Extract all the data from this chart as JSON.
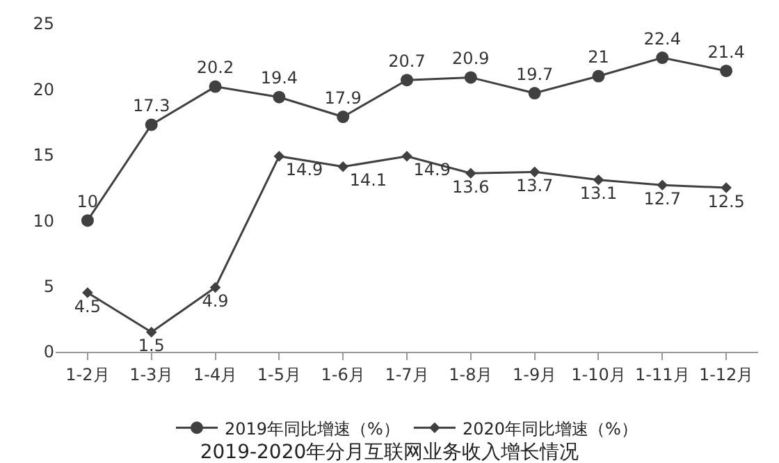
{
  "chart_data": {
    "type": "line",
    "title": "2019-2020年分月互联网业务收入增长情况",
    "categories": [
      "1-2月",
      "1-3月",
      "1-4月",
      "1-5月",
      "1-6月",
      "1-7月",
      "1-8月",
      "1-9月",
      "1-10月",
      "1-11月",
      "1-12月"
    ],
    "series": [
      {
        "name": "2019年同比增速（%）",
        "color": "#404040",
        "marker": "circle",
        "values": [
          10,
          17.3,
          20.2,
          19.4,
          17.9,
          20.7,
          20.9,
          19.7,
          21,
          22.4,
          21.4
        ]
      },
      {
        "name": "2020年同比增速（%）",
        "color": "#404040",
        "marker": "diamond",
        "values": [
          4.5,
          1.5,
          4.9,
          14.9,
          14.1,
          14.9,
          13.6,
          13.7,
          13.1,
          12.7,
          12.5
        ]
      }
    ],
    "ylim": [
      0,
      25
    ],
    "yticks": [
      0,
      5,
      10,
      15,
      20,
      25
    ],
    "legend": "bottom",
    "data_labels": true
  }
}
